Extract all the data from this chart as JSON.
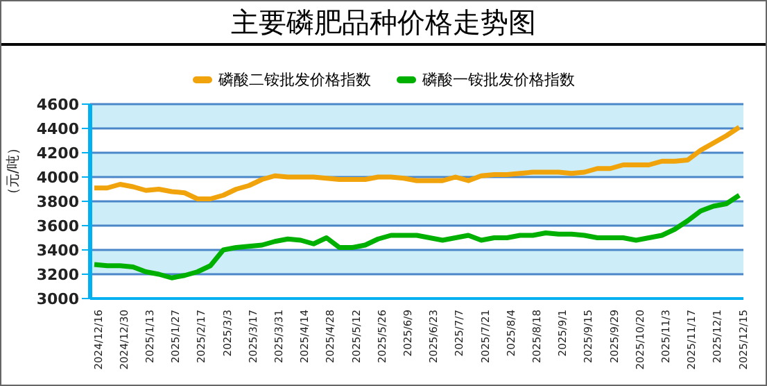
{
  "chart_data": {
    "type": "line",
    "title": "主要磷肥品种价格走势图",
    "ylabel": "（元/吨）",
    "categories": [
      "2024/12/16",
      null,
      "2024/12/30",
      null,
      "2025/1/13",
      null,
      "2025/1/27",
      null,
      "2025/2/17",
      null,
      "2025/3/3",
      null,
      "2025/3/17",
      null,
      "2025/3/31",
      null,
      "2025/4/14",
      null,
      "2025/4/28",
      null,
      "2025/5/12",
      null,
      "2025/5/26",
      null,
      "2025/6/9",
      null,
      "2025/6/23",
      null,
      "2025/7/7",
      null,
      "2025/7/21",
      null,
      "2025/8/4",
      null,
      "2025/8/18",
      null,
      "2025/9/1",
      null,
      "2025/9/15",
      null,
      "2025/9/29",
      null,
      "2025/10/20",
      null,
      "2025/11/3",
      null,
      "2025/11/17",
      null,
      "2025/12/1",
      null,
      "2025/12/15"
    ],
    "series": [
      {
        "name": "磷酸二铵批发价格指数",
        "color": "#f0a30a",
        "values": [
          3910,
          3910,
          3940,
          3920,
          3890,
          3900,
          3880,
          3870,
          3820,
          3820,
          3850,
          3900,
          3930,
          3980,
          4010,
          4000,
          4000,
          4000,
          3990,
          3980,
          3980,
          3980,
          4000,
          4000,
          3990,
          3970,
          3970,
          3970,
          4000,
          3970,
          4010,
          4020,
          4020,
          4030,
          4040,
          4040,
          4040,
          4030,
          4040,
          4070,
          4070,
          4100,
          4100,
          4100,
          4130,
          4130,
          4140,
          4220,
          4280,
          4340,
          4410
        ]
      },
      {
        "name": "磷酸一铵批发价格指数",
        "color": "#00b000",
        "values": [
          3280,
          3270,
          3270,
          3260,
          3220,
          3200,
          3170,
          3190,
          3220,
          3270,
          3400,
          3420,
          3430,
          3440,
          3470,
          3490,
          3480,
          3450,
          3500,
          3420,
          3420,
          3440,
          3490,
          3520,
          3520,
          3520,
          3500,
          3480,
          3500,
          3520,
          3480,
          3500,
          3500,
          3520,
          3520,
          3540,
          3530,
          3530,
          3520,
          3500,
          3500,
          3500,
          3480,
          3500,
          3520,
          3570,
          3640,
          3720,
          3760,
          3780,
          3850
        ]
      }
    ],
    "ylim": [
      3000,
      4600
    ],
    "yticks": [
      3000,
      3200,
      3400,
      3600,
      3800,
      4000,
      4200,
      4400,
      4600
    ],
    "grid": "y",
    "legend": "top",
    "marker": "none",
    "line_style": "solid"
  }
}
